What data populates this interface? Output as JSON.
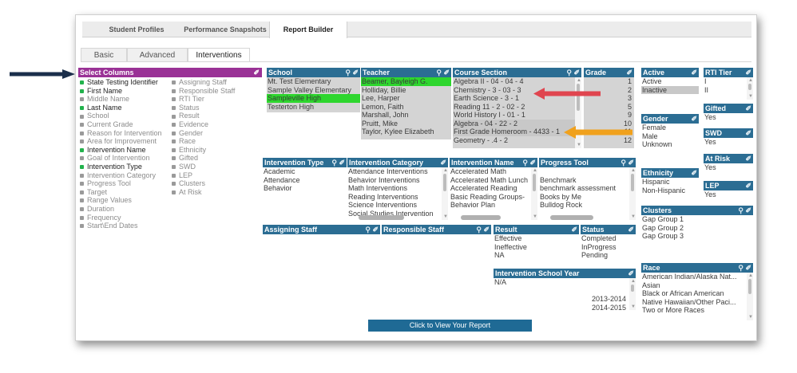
{
  "tabs": {
    "items": [
      "Student Profiles",
      "Performance Snapshots",
      "Report Builder"
    ]
  },
  "subtabs": {
    "items": [
      "Basic",
      "Advanced",
      "Interventions"
    ]
  },
  "select_columns": {
    "title": "Select Columns",
    "left": [
      {
        "label": "State Testing Identifier",
        "on": true
      },
      {
        "label": "First Name",
        "on": true
      },
      {
        "label": "Middle Name",
        "on": false
      },
      {
        "label": "Last Name",
        "on": true
      },
      {
        "label": "School",
        "on": false
      },
      {
        "label": "Current Grade",
        "on": false
      },
      {
        "label": "Reason for Intervention",
        "on": false
      },
      {
        "label": "Area for Improvement",
        "on": false
      },
      {
        "label": "Intervention Name",
        "on": true
      },
      {
        "label": "Goal of Intervention",
        "on": false
      },
      {
        "label": "Intervention Type",
        "on": true
      },
      {
        "label": "Intervention Category",
        "on": false
      },
      {
        "label": "Progress Tool",
        "on": false
      },
      {
        "label": "Target",
        "on": false
      },
      {
        "label": "Range Values",
        "on": false
      },
      {
        "label": "Duration",
        "on": false
      },
      {
        "label": "Frequency",
        "on": false
      },
      {
        "label": "Start\\End Dates",
        "on": false
      }
    ],
    "right": [
      {
        "label": "Assigning Staff",
        "on": false
      },
      {
        "label": "Responsible Staff",
        "on": false
      },
      {
        "label": "RTI Tier",
        "on": false
      },
      {
        "label": "Status",
        "on": false
      },
      {
        "label": "Result",
        "on": false
      },
      {
        "label": "Evidence",
        "on": false
      },
      {
        "label": "Gender",
        "on": false
      },
      {
        "label": "Race",
        "on": false
      },
      {
        "label": "Ethnicity",
        "on": false
      },
      {
        "label": "Gifted",
        "on": false
      },
      {
        "label": "SWD",
        "on": false
      },
      {
        "label": "LEP",
        "on": false
      },
      {
        "label": "Clusters",
        "on": false
      },
      {
        "label": "At Risk",
        "on": false
      }
    ]
  },
  "panels": {
    "school": {
      "title": "School",
      "items": [
        "Mt. Test Elementary",
        "Sample Valley Elementary",
        "Sampleville High",
        "Testerton High"
      ],
      "selected": [
        2
      ]
    },
    "teacher": {
      "title": "Teacher",
      "items": [
        "Beamer, Bayleigh G.",
        "Holliday, Billie",
        "Lee, Harper",
        "Lemon, Faith",
        "Marshall, John",
        "Pruitt, Mike",
        "Taylor, Kylee Elizabeth"
      ],
      "selected": [
        0
      ]
    },
    "course": {
      "title": "Course Section",
      "items": [
        "Algebra II - 04 - 04 - 4",
        "Chemistry - 3 - 03 - 3",
        "Earth Science - 3 - 1",
        "Reading 11 - 2 - 02 - 2",
        "World History I - 01 - 1",
        "Algebra - 04 - 22 - 2",
        "First Grade Homeroom - 4433 - 1",
        "Geometry - .4 - 2"
      ]
    },
    "grade": {
      "title": "Grade",
      "items": [
        "1",
        "2",
        "3",
        "5",
        "9",
        "10",
        "11",
        "12"
      ]
    },
    "active": {
      "title": "Active",
      "items": [
        "Active",
        "Inactive"
      ]
    },
    "rti": {
      "title": "RTI Tier",
      "items": [
        "I",
        "II"
      ]
    },
    "gender": {
      "title": "Gender",
      "items": [
        "Female",
        "Male",
        "Unknown"
      ]
    },
    "gifted": {
      "title": "Gifted",
      "items": [
        "Yes"
      ]
    },
    "swd": {
      "title": "SWD",
      "items": [
        "Yes"
      ]
    },
    "atrisk": {
      "title": "At Risk",
      "items": [
        "Yes"
      ]
    },
    "ethnicity": {
      "title": "Ethnicity",
      "items": [
        "Hispanic",
        "Non-Hispanic"
      ]
    },
    "lep": {
      "title": "LEP",
      "items": [
        "Yes"
      ]
    },
    "clusters": {
      "title": "Clusters",
      "items": [
        "Gap Group 1",
        "Gap Group 2",
        "Gap Group 3"
      ]
    },
    "race": {
      "title": "Race",
      "items": [
        "American Indian/Alaska Nat...",
        "Asian",
        "Black or African American",
        "Native Hawaiian/Other Paci...",
        "Two or More Races"
      ]
    },
    "itype": {
      "title": "Intervention Type",
      "items": [
        "Academic",
        "Attendance",
        "Behavior"
      ]
    },
    "icat": {
      "title": "Intervention Category",
      "items": [
        "Attendance Interventions",
        "Behavior Interventions",
        "Math Interventions",
        "Reading Interventions",
        "Science Interventions",
        "Social Studies Intervention"
      ]
    },
    "iname": {
      "title": "Intervention Name",
      "items": [
        "Accelerated Math",
        "Accelerated Math Lunch",
        "Accelerated Reading",
        "Basic Reading Groups-",
        "Behavior Plan"
      ]
    },
    "ptool": {
      "title": "Progress Tool",
      "items": [
        "",
        "Benchmark",
        "benchmark assessment",
        "Books by Me",
        "Bulldog Rock"
      ]
    },
    "astaff": {
      "title": "Assigning Staff",
      "items": []
    },
    "rstaff": {
      "title": "Responsible Staff",
      "items": []
    },
    "result": {
      "title": "Result",
      "items": [
        "Effective",
        "Ineffective",
        "NA"
      ]
    },
    "status": {
      "title": "Status",
      "items": [
        "Completed",
        "InProgress",
        "Pending"
      ]
    },
    "isy": {
      "title": "Intervention School Year",
      "items": [
        "N/A",
        "",
        "2013-2014",
        "2014-2015"
      ]
    }
  },
  "button": {
    "label": "Click to View Your Report"
  },
  "colors": {
    "header": "#2b6d93",
    "select_header": "#9a3296",
    "green_select": "#2ed62e",
    "pointer_red": "#e0454f",
    "pointer_orange": "#f0a11d",
    "pointer_navy": "#1b2f4b"
  }
}
